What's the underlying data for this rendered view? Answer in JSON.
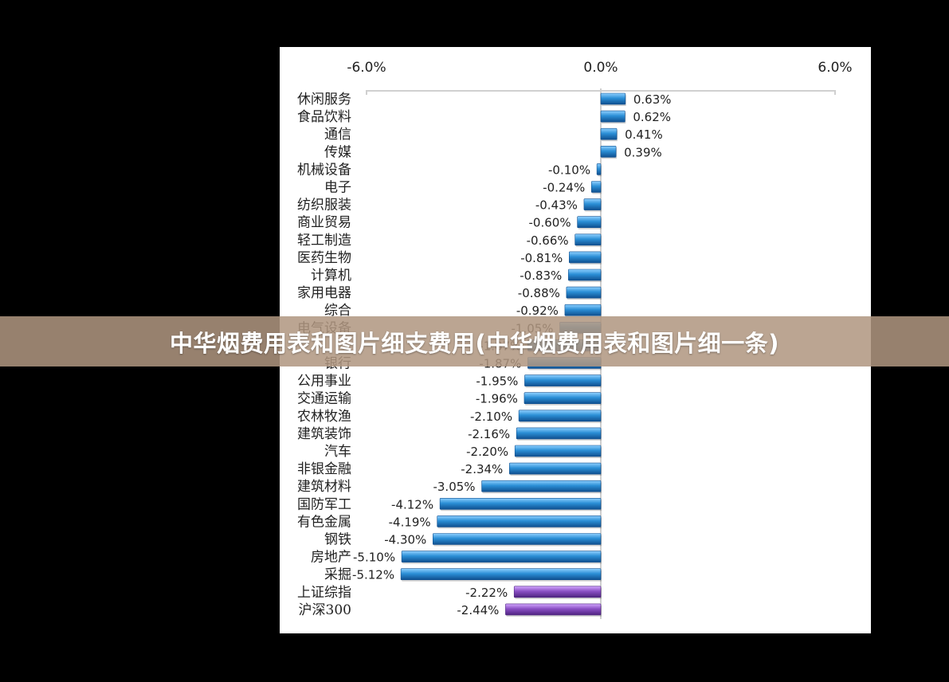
{
  "banner": {
    "title": "中华烟费用表和图片细支费用(中华烟费用表和图片细一条)"
  },
  "colors": {
    "industry_bar": "#2b8fd6",
    "index_bar": "#8a4fc4",
    "banner_bg": "#b09680"
  },
  "chart_data": {
    "type": "bar",
    "orientation": "horizontal",
    "title": "",
    "xlabel": "",
    "ylabel": "",
    "xlim": [
      -6.0,
      6.0
    ],
    "x_ticks": [
      -6.0,
      0.0,
      6.0
    ],
    "x_tick_labels": [
      "-6.0%",
      "0.0%",
      "6.0%"
    ],
    "axis_position": "top",
    "grid": false,
    "categories": [
      "休闲服务",
      "食品饮料",
      "通信",
      "传媒",
      "机械设备",
      "电子",
      "纺织服装",
      "商业贸易",
      "轻工制造",
      "医药生物",
      "计算机",
      "家用电器",
      "综合",
      "电气设备",
      "",
      "银行",
      "公用事业",
      "交通运输",
      "农林牧渔",
      "建筑装饰",
      "汽车",
      "非银金融",
      "建筑材料",
      "国防军工",
      "有色金属",
      "钢铁",
      "房地产",
      "采掘",
      "上证综指",
      "沪深300"
    ],
    "values": [
      0.63,
      0.62,
      0.41,
      0.39,
      -0.1,
      -0.24,
      -0.43,
      -0.6,
      -0.66,
      -0.81,
      -0.83,
      -0.88,
      -0.92,
      -1.05,
      -1.87,
      -1.87,
      -1.95,
      -1.96,
      -2.1,
      -2.16,
      -2.2,
      -2.34,
      -3.05,
      -4.12,
      -4.19,
      -4.3,
      -5.1,
      -5.12,
      -2.22,
      -2.44
    ],
    "value_labels": [
      "0.63%",
      "0.62%",
      "0.41%",
      "0.39%",
      "-0.10%",
      "-0.24%",
      "-0.43%",
      "-0.60%",
      "-0.66%",
      "-0.81%",
      "-0.83%",
      "-0.88%",
      "-0.92%",
      "-1.05%",
      "-1.87%",
      "-1.87%",
      "-1.95%",
      "-1.96%",
      "-2.10%",
      "-2.16%",
      "-2.20%",
      "-2.34%",
      "-3.05%",
      "-4.12%",
      "-4.19%",
      "-4.30%",
      "-5.10%",
      "-5.12%",
      "-2.22%",
      "-2.44%"
    ],
    "series_group": [
      "industry",
      "industry",
      "industry",
      "industry",
      "industry",
      "industry",
      "industry",
      "industry",
      "industry",
      "industry",
      "industry",
      "industry",
      "industry",
      "industry",
      "industry",
      "industry",
      "industry",
      "industry",
      "industry",
      "industry",
      "industry",
      "industry",
      "industry",
      "industry",
      "industry",
      "industry",
      "industry",
      "industry",
      "index",
      "index"
    ]
  }
}
